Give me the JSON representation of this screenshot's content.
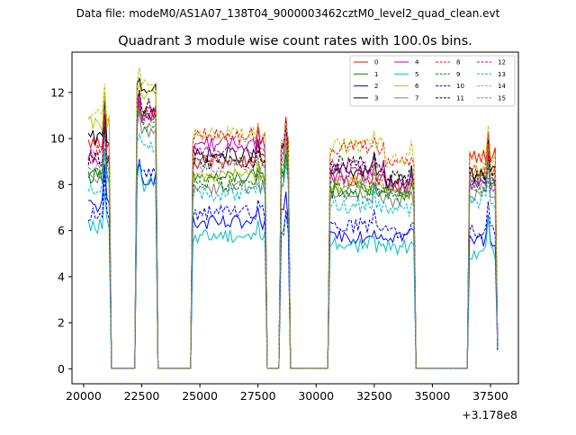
{
  "suptitle": "Data file: modeM0/AS1A07_138T04_9000003462cztM0_level2_quad_clean.evt",
  "chart_data": {
    "type": "line",
    "title": "Quadrant 3 module wise count rates with 100.0s bins.",
    "xlabel": "",
    "ylabel": "",
    "offset_label": "+3.178e8",
    "xlim": [
      19500,
      38700
    ],
    "ylim": [
      -0.65,
      13.75
    ],
    "xticks": [
      20000,
      22500,
      25000,
      27500,
      30000,
      32500,
      35000,
      37500
    ],
    "xtick_labels": [
      "20000",
      "22500",
      "25000",
      "27500",
      "30000",
      "32500",
      "35000",
      "37500"
    ],
    "yticks": [
      0,
      2,
      4,
      6,
      8,
      10,
      12
    ],
    "ytick_labels": [
      "0",
      "2",
      "4",
      "6",
      "8",
      "10",
      "12"
    ],
    "legend_position": "top-right",
    "grid": false,
    "series": [
      {
        "name": "0",
        "color": "#ff0000",
        "dash": "solid",
        "levels": [
          9.8,
          11.2,
          9.0,
          9.6,
          8.3,
          7.9,
          9.3
        ]
      },
      {
        "name": "1",
        "color": "#008000",
        "dash": "solid",
        "levels": [
          8.4,
          10.8,
          8.3,
          8.7,
          7.7,
          7.6,
          8.2
        ]
      },
      {
        "name": "2",
        "color": "#0000ff",
        "dash": "solid",
        "levels": [
          7.1,
          8.3,
          6.3,
          6.6,
          5.8,
          5.8,
          5.6
        ]
      },
      {
        "name": "3",
        "color": "#000000",
        "dash": "solid",
        "levels": [
          10.0,
          12.2,
          9.3,
          9.6,
          8.6,
          8.1,
          8.5
        ]
      },
      {
        "name": "4",
        "color": "#bf00bf",
        "dash": "solid",
        "levels": [
          9.0,
          11.0,
          9.8,
          9.6,
          8.4,
          7.9,
          8.1
        ]
      },
      {
        "name": "5",
        "color": "#00bfbf",
        "dash": "solid",
        "levels": [
          6.2,
          8.0,
          5.8,
          6.0,
          5.4,
          5.3,
          5.1
        ]
      },
      {
        "name": "6",
        "color": "#bfbf00",
        "dash": "solid",
        "levels": [
          10.6,
          11.8,
          8.4,
          8.8,
          8.0,
          7.6,
          8.6
        ]
      },
      {
        "name": "7",
        "color": "#808080",
        "dash": "solid",
        "levels": [
          8.2,
          10.3,
          7.9,
          8.2,
          7.5,
          7.3,
          7.6
        ]
      },
      {
        "name": "8",
        "color": "#ff0000",
        "dash": "dashed",
        "levels": [
          9.4,
          11.0,
          10.1,
          9.8,
          9.6,
          9.0,
          8.6
        ]
      },
      {
        "name": "9",
        "color": "#008000",
        "dash": "dashed",
        "levels": [
          8.6,
          10.6,
          8.1,
          8.4,
          7.8,
          7.5,
          7.9
        ]
      },
      {
        "name": "10",
        "color": "#0000ff",
        "dash": "dashed",
        "levels": [
          6.7,
          8.5,
          6.8,
          6.1,
          6.2,
          6.0,
          6.0
        ]
      },
      {
        "name": "11",
        "color": "#000000",
        "dash": "dashed",
        "levels": [
          9.1,
          11.4,
          9.0,
          9.4,
          8.9,
          8.3,
          8.3
        ]
      },
      {
        "name": "12",
        "color": "#bf00bf",
        "dash": "dashed",
        "levels": [
          9.3,
          11.0,
          9.5,
          9.2,
          8.8,
          8.0,
          8.0
        ]
      },
      {
        "name": "13",
        "color": "#00bfbf",
        "dash": "dashed",
        "levels": [
          7.9,
          9.6,
          7.6,
          7.8,
          7.1,
          6.9,
          7.3
        ]
      },
      {
        "name": "14",
        "color": "#bfbf00",
        "dash": "dashed",
        "levels": [
          11.0,
          12.2,
          10.2,
          9.7,
          9.7,
          9.2,
          9.2
        ]
      },
      {
        "name": "15",
        "color": "#808080",
        "dash": "dashed",
        "levels": [
          8.9,
          10.9,
          8.8,
          8.9,
          8.1,
          7.8,
          8.0
        ]
      }
    ],
    "segments": [
      {
        "t0": 20200,
        "t1": 21100,
        "peak_t": 20900,
        "peak_add": 1.5
      },
      {
        "t0": 22300,
        "t1": 23100,
        "peak_t": 22400,
        "peak_add": 0.7
      },
      {
        "t0": 24700,
        "t1": 27800,
        "peak_t": 27500,
        "peak_add": 0.4
      },
      {
        "t0": 28500,
        "t1": 28800,
        "peak_t": 28700,
        "peak_add": 1.0
      },
      {
        "t0": 30600,
        "t1": 32900,
        "peak_t": 32500,
        "peak_add": 0.5
      },
      {
        "t0": 32900,
        "t1": 34200,
        "peak_t": 34100,
        "peak_add": 0.4
      },
      {
        "t0": 36600,
        "t1": 37800,
        "peak_t": 37400,
        "peak_add": 1.2
      }
    ]
  }
}
